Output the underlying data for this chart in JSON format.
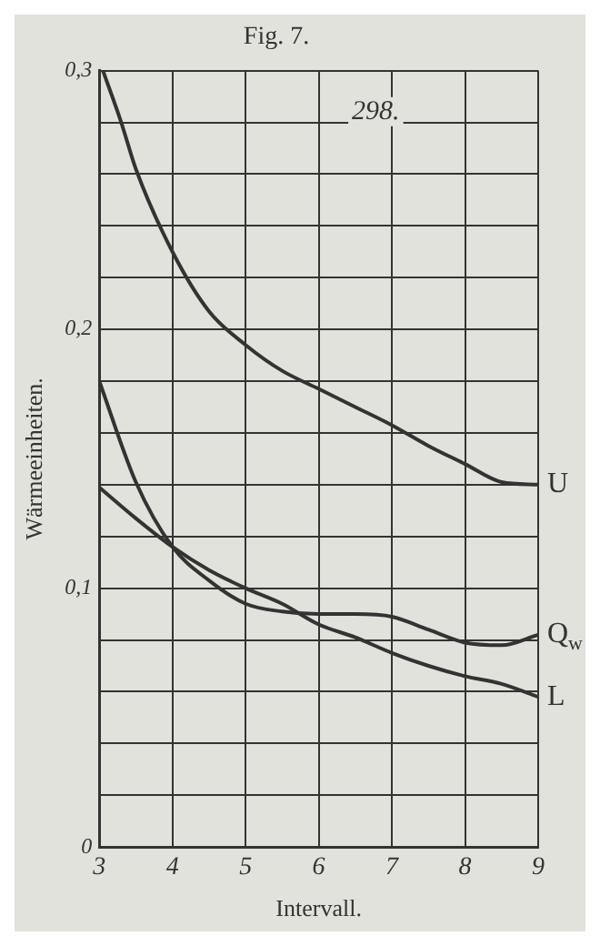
{
  "chart_data": {
    "type": "line",
    "title": "Fig. 7.",
    "xlabel": "Intervall.",
    "ylabel": "Wärmeeinheiten.",
    "x": [
      3,
      3.5,
      4,
      4.5,
      5,
      5.5,
      6,
      6.5,
      7,
      7.5,
      8,
      8.5,
      9
    ],
    "series": [
      {
        "name": "U",
        "color": "#333333",
        "x": [
          3.05,
          3.3,
          3.5,
          4,
          4.5,
          5,
          5.5,
          6,
          6.5,
          7,
          7.5,
          8,
          8.5,
          9
        ],
        "values": [
          0.3,
          0.28,
          0.262,
          0.23,
          0.207,
          0.194,
          0.184,
          0.177,
          0.17,
          0.163,
          0.155,
          0.148,
          0.141,
          0.14
        ]
      },
      {
        "name": "Q$_{w}$",
        "color": "#333333",
        "values": [
          0.18,
          0.141,
          0.116,
          0.103,
          0.094,
          0.091,
          0.09,
          0.09,
          0.089,
          0.084,
          0.079,
          0.078,
          0.082
        ]
      },
      {
        "name": "L",
        "color": "#333333",
        "values": [
          0.139,
          0.127,
          0.116,
          0.107,
          0.1,
          0.094,
          0.086,
          0.081,
          0.075,
          0.07,
          0.066,
          0.063,
          0.058
        ]
      }
    ],
    "xlim": [
      3,
      9
    ],
    "xticks": [
      3,
      4,
      5,
      6,
      7,
      8,
      9
    ],
    "ylim": [
      0,
      0.3
    ],
    "yticks": [
      {
        "value": 0,
        "label": "0"
      },
      {
        "value": 0.02,
        "label": null
      },
      {
        "value": 0.04,
        "label": null
      },
      {
        "value": 0.06,
        "label": null
      },
      {
        "value": 0.08,
        "label": null
      },
      {
        "value": 0.1,
        "label": "0,1"
      },
      {
        "value": 0.12,
        "label": null
      },
      {
        "value": 0.14,
        "label": null
      },
      {
        "value": 0.16,
        "label": null
      },
      {
        "value": 0.18,
        "label": null
      },
      {
        "value": 0.2,
        "label": "0,2"
      },
      {
        "value": 0.22,
        "label": null
      },
      {
        "value": 0.24,
        "label": null
      },
      {
        "value": 0.26,
        "label": null
      },
      {
        "value": 0.28,
        "label": null
      },
      {
        "value": 0.3,
        "label": "0,3"
      }
    ],
    "annotations": [
      "298."
    ],
    "grid": true,
    "marker": "none",
    "line_style": "solid",
    "legend": false
  }
}
